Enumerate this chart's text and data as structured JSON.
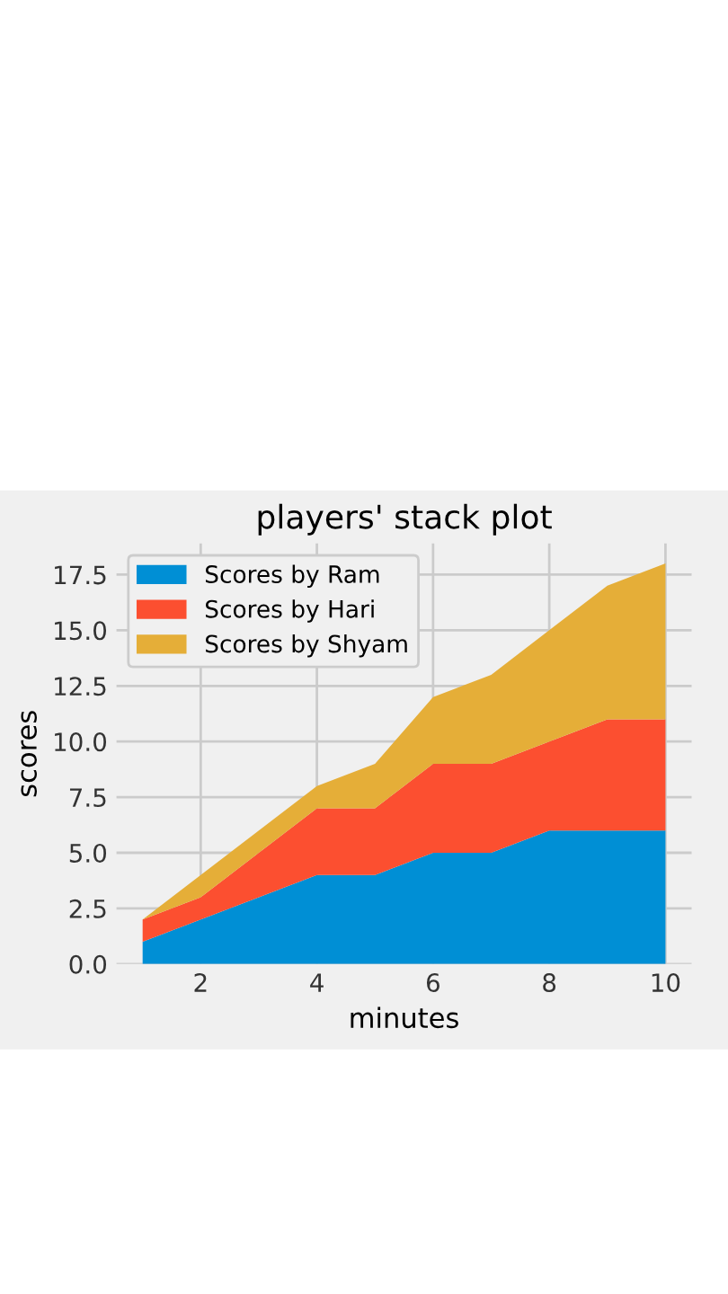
{
  "chart_data": {
    "type": "area",
    "stacked": true,
    "title": "players' stack plot",
    "xlabel": "minutes",
    "ylabel": "scores",
    "x": [
      1,
      2,
      3,
      4,
      5,
      6,
      7,
      8,
      9,
      10
    ],
    "series": [
      {
        "name": "Scores by Ram",
        "color": "#008fd5",
        "values": [
          1,
          2,
          3,
          4,
          4,
          5,
          5,
          6,
          6,
          6
        ]
      },
      {
        "name": "Scores by Hari",
        "color": "#fc4f30",
        "values": [
          1,
          1,
          2,
          3,
          3,
          4,
          4,
          4,
          5,
          5
        ]
      },
      {
        "name": "Scores by Shyam",
        "color": "#e5ae38",
        "values": [
          0,
          1,
          1,
          1,
          2,
          3,
          4,
          5,
          6,
          7
        ]
      }
    ],
    "xlim": [
      0.55,
      10.45
    ],
    "xticks": [
      2,
      4,
      6,
      8,
      10
    ],
    "ylim": [
      0,
      18.9
    ],
    "yticks": [
      {
        "value": 0,
        "label": "0.0"
      },
      {
        "value": 2.5,
        "label": "2.5"
      },
      {
        "value": 5,
        "label": "5.0"
      },
      {
        "value": 7.5,
        "label": "7.5"
      },
      {
        "value": 10,
        "label": "10.0"
      },
      {
        "value": 12.5,
        "label": "12.5"
      },
      {
        "value": 15,
        "label": "15.0"
      },
      {
        "value": 17.5,
        "label": "17.5"
      }
    ],
    "grid": true,
    "legend": "top left"
  }
}
